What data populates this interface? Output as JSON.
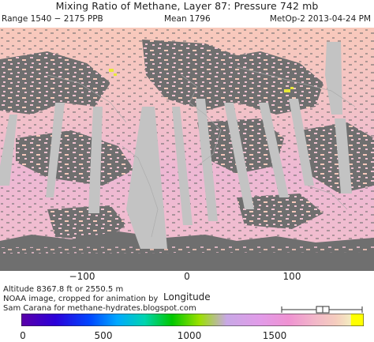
{
  "header": {
    "title": "Mixing Ratio of Methane, Layer 87: Pressure 742 mb",
    "range": "Range 1540 − 2175 PPB",
    "mean": "Mean 1796",
    "satellite_date": "MetOp-2 2013-04-24 PM"
  },
  "map": {
    "x_axis_label": "Longitude",
    "x_ticks": [
      "−100",
      "0",
      "100"
    ],
    "colors": {
      "ocean_pink": "#f0c2cf",
      "warm_peach": "#f8c9bb",
      "missing_gray": "#6f6f6f",
      "swath_gap": "#c3c3c3",
      "coastline": "#aaaaaa",
      "hotspot_yellow": "#e8e838"
    }
  },
  "footer": {
    "altitude": "Altitude 8367.8 ft or 2550.5 m",
    "credit": "NOAA image, cropped for animation by",
    "author": "Sam Carana for methane-hydrates.blogspot.com"
  },
  "colorbar": {
    "ticks": [
      "0",
      "500",
      "1000",
      "1500"
    ],
    "range_marker": "1540–2175",
    "colors": [
      "#5b00a8",
      "#2b00d9",
      "#0046ff",
      "#00a8ff",
      "#00d4b0",
      "#00c800",
      "#9be000",
      "#c8a8e6",
      "#e29be8",
      "#ef92d2",
      "#f2b8c8",
      "#f5cdbe",
      "#f4ecc0",
      "#ffff00"
    ]
  }
}
